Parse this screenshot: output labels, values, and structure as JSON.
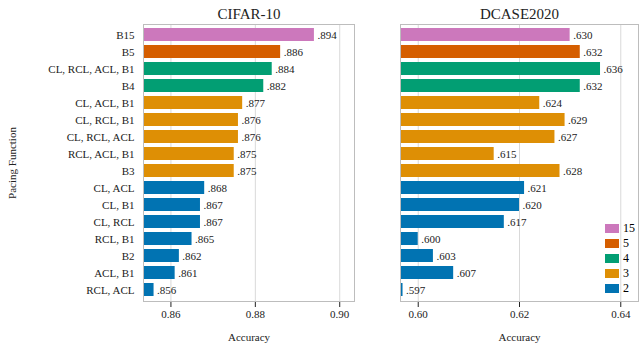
{
  "chart_data": [
    {
      "type": "bar",
      "orientation": "horizontal",
      "title": "CIFAR-10",
      "x_label": "Accuracy",
      "y_label": "Pacing Function",
      "categories": [
        "B15",
        "B5",
        "CL, RCL, ACL, B1",
        "B4",
        "CL, ACL, B1",
        "CL, RCL, B1",
        "CL, RCL, ACL",
        "RCL, ACL, B1",
        "B3",
        "CL, ACL",
        "CL, B1",
        "CL, RCL",
        "RCL, B1",
        "B2",
        "ACL, B1",
        "RCL, ACL"
      ],
      "series": [
        {
          "name": "15",
          "color": "#cc78bc",
          "values": [
            0.894,
            null,
            null,
            null,
            null,
            null,
            null,
            null,
            null,
            null,
            null,
            null,
            null,
            null,
            null,
            null
          ],
          "value_labels": [
            ".894",
            null,
            null,
            null,
            null,
            null,
            null,
            null,
            null,
            null,
            null,
            null,
            null,
            null,
            null,
            null
          ]
        },
        {
          "name": "5",
          "color": "#d55e00",
          "values": [
            null,
            0.886,
            null,
            null,
            null,
            null,
            null,
            null,
            null,
            null,
            null,
            null,
            null,
            null,
            null,
            null
          ],
          "value_labels": [
            null,
            ".886",
            null,
            null,
            null,
            null,
            null,
            null,
            null,
            null,
            null,
            null,
            null,
            null,
            null,
            null
          ]
        },
        {
          "name": "4",
          "color": "#029e73",
          "values": [
            null,
            null,
            0.884,
            0.882,
            null,
            null,
            null,
            null,
            null,
            null,
            null,
            null,
            null,
            null,
            null,
            null
          ],
          "value_labels": [
            null,
            null,
            ".884",
            ".882",
            null,
            null,
            null,
            null,
            null,
            null,
            null,
            null,
            null,
            null,
            null,
            null
          ]
        },
        {
          "name": "3",
          "color": "#de8f05",
          "values": [
            null,
            null,
            null,
            null,
            0.877,
            0.876,
            0.876,
            0.875,
            0.875,
            null,
            null,
            null,
            null,
            null,
            null,
            null
          ],
          "value_labels": [
            null,
            null,
            null,
            null,
            ".877",
            ".876",
            ".876",
            ".875",
            ".875",
            null,
            null,
            null,
            null,
            null,
            null,
            null
          ]
        },
        {
          "name": "2",
          "color": "#0173b2",
          "values": [
            null,
            null,
            null,
            null,
            null,
            null,
            null,
            null,
            null,
            0.868,
            0.867,
            0.867,
            0.865,
            0.862,
            0.861,
            0.856
          ],
          "value_labels": [
            null,
            null,
            null,
            null,
            null,
            null,
            null,
            null,
            null,
            ".868",
            ".867",
            ".867",
            ".865",
            ".862",
            ".861",
            ".856"
          ]
        }
      ],
      "xlim": [
        0.8535,
        0.9035
      ],
      "xticks": [
        0.86,
        0.88,
        {
          "value": 0.9,
          "label": "0.90"
        }
      ],
      "grid": true,
      "data_labels": true
    },
    {
      "type": "bar",
      "orientation": "horizontal",
      "title": "DCASE2020",
      "x_label": "Accuracy",
      "categories": [
        "B15",
        "B5",
        "CL, RCL, ACL, B1",
        "B4",
        "CL, ACL, B1",
        "CL, RCL, B1",
        "CL, RCL, ACL",
        "RCL, ACL, B1",
        "B3",
        "CL, ACL",
        "CL, B1",
        "CL, RCL",
        "RCL, B1",
        "B2",
        "ACL, B1",
        "RCL, ACL"
      ],
      "series": [
        {
          "name": "15",
          "color": "#cc78bc",
          "values": [
            0.63,
            null,
            null,
            null,
            null,
            null,
            null,
            null,
            null,
            null,
            null,
            null,
            null,
            null,
            null,
            null
          ],
          "value_labels": [
            ".630",
            null,
            null,
            null,
            null,
            null,
            null,
            null,
            null,
            null,
            null,
            null,
            null,
            null,
            null,
            null
          ]
        },
        {
          "name": "5",
          "color": "#d55e00",
          "values": [
            null,
            0.632,
            null,
            null,
            null,
            null,
            null,
            null,
            null,
            null,
            null,
            null,
            null,
            null,
            null,
            null
          ],
          "value_labels": [
            null,
            ".632",
            null,
            null,
            null,
            null,
            null,
            null,
            null,
            null,
            null,
            null,
            null,
            null,
            null,
            null
          ]
        },
        {
          "name": "4",
          "color": "#029e73",
          "values": [
            null,
            null,
            0.636,
            0.632,
            null,
            null,
            null,
            null,
            null,
            null,
            null,
            null,
            null,
            null,
            null,
            null
          ],
          "value_labels": [
            null,
            null,
            ".636",
            ".632",
            null,
            null,
            null,
            null,
            null,
            null,
            null,
            null,
            null,
            null,
            null,
            null
          ]
        },
        {
          "name": "3",
          "color": "#de8f05",
          "values": [
            null,
            null,
            null,
            null,
            0.624,
            0.629,
            0.627,
            0.615,
            0.628,
            null,
            null,
            null,
            null,
            null,
            null,
            null
          ],
          "value_labels": [
            null,
            null,
            null,
            null,
            ".624",
            ".629",
            ".627",
            ".615",
            ".628",
            null,
            null,
            null,
            null,
            null,
            null,
            null
          ]
        },
        {
          "name": "2",
          "color": "#0173b2",
          "values": [
            null,
            null,
            null,
            null,
            null,
            null,
            null,
            null,
            null,
            0.621,
            0.62,
            0.617,
            0.6,
            0.603,
            0.607,
            0.597
          ],
          "value_labels": [
            null,
            null,
            null,
            null,
            null,
            null,
            null,
            null,
            null,
            ".621",
            ".620",
            ".617",
            ".600",
            ".603",
            ".607",
            ".597"
          ]
        }
      ],
      "xlim": [
        0.5965,
        0.6435
      ],
      "xticks": [
        {
          "value": 0.6,
          "label": "0.60"
        },
        0.62,
        0.64
      ],
      "grid": true,
      "data_labels": true,
      "tick_labels": "x",
      "legend": "lower right"
    }
  ]
}
